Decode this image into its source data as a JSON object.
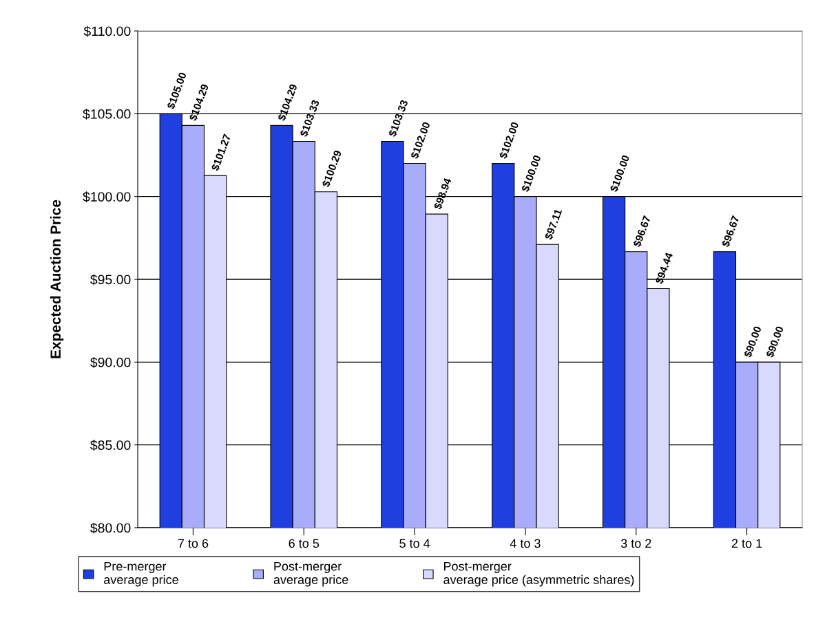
{
  "chart_data": {
    "type": "bar",
    "ylabel": "Expected Auction Price",
    "categories": [
      "7 to 6",
      "6 to 5",
      "5 to 4",
      "4 to 3",
      "3 to 2",
      "2 to 1"
    ],
    "series": [
      {
        "name": "Pre-merger\naverage price",
        "color": "#1f3fe0",
        "values": [
          105.0,
          104.29,
          103.33,
          102.0,
          100.0,
          96.67
        ],
        "value_labels": [
          "$105.00",
          "$104.29",
          "$103.33",
          "$102.00",
          "$100.00",
          "$96.67"
        ]
      },
      {
        "name": "Post-merger\naverage price",
        "color": "#a8acfa",
        "values": [
          104.29,
          103.33,
          102.0,
          100.0,
          96.67,
          90.0
        ],
        "value_labels": [
          "$104.29",
          "$103.33",
          "$102.00",
          "$100.00",
          "$96.67",
          "$90.00"
        ]
      },
      {
        "name": "Post-merger\naverage price (asymmetric shares)",
        "color": "#d8d9fd",
        "values": [
          101.27,
          100.29,
          98.94,
          97.11,
          94.44,
          90.0
        ],
        "value_labels": [
          "$101.27",
          "$100.29",
          "$98.94",
          "$97.11",
          "$94.44",
          "$90.00"
        ]
      }
    ],
    "ylim": [
      80,
      110
    ],
    "yticks": [
      {
        "value": 80,
        "label": "$80.00"
      },
      {
        "value": 85,
        "label": "$85.00"
      },
      {
        "value": 90,
        "label": "$90.00"
      },
      {
        "value": 95,
        "label": "$95.00"
      },
      {
        "value": 100,
        "label": "$100.00"
      },
      {
        "value": 105,
        "label": "$105.00"
      },
      {
        "value": 110,
        "label": "$110.00"
      }
    ],
    "grid": "y",
    "legend": "bottom"
  }
}
